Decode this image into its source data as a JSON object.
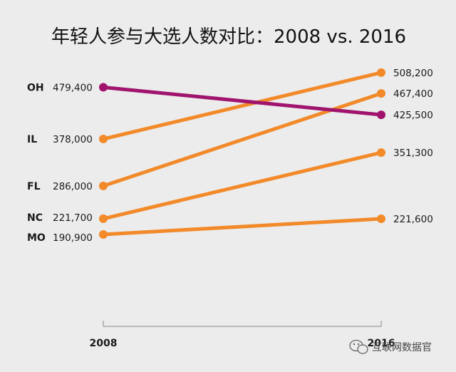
{
  "chart_data": {
    "type": "line",
    "title": "年轻人参与大选人数对比：2008 vs. 2016",
    "categories": [
      "2008",
      "2016"
    ],
    "series": [
      {
        "name": "OH",
        "values": [
          479400,
          425500
        ],
        "color": "#a0146e"
      },
      {
        "name": "IL",
        "values": [
          378000,
          508200
        ],
        "color": "#f28a2a"
      },
      {
        "name": "FL",
        "values": [
          286000,
          467400
        ],
        "color": "#f28a2a"
      },
      {
        "name": "NC",
        "values": [
          221700,
          351300
        ],
        "color": "#f28a2a"
      },
      {
        "name": "MO",
        "values": [
          190900,
          221600
        ],
        "color": "#f28a2a"
      }
    ],
    "value_labels": {
      "OH": [
        "479,400",
        "425,500"
      ],
      "IL": [
        "378,000",
        "508,200"
      ],
      "FL": [
        "286,000",
        "467,400"
      ],
      "NC": [
        "221,700",
        "351,300"
      ],
      "MO": [
        "190,900",
        "221,600"
      ]
    },
    "grid": false
  },
  "watermark": "互联网数据官",
  "colors": {
    "background": "#ececec",
    "highlight": "#a0146e",
    "accent": "#f28a2a"
  }
}
